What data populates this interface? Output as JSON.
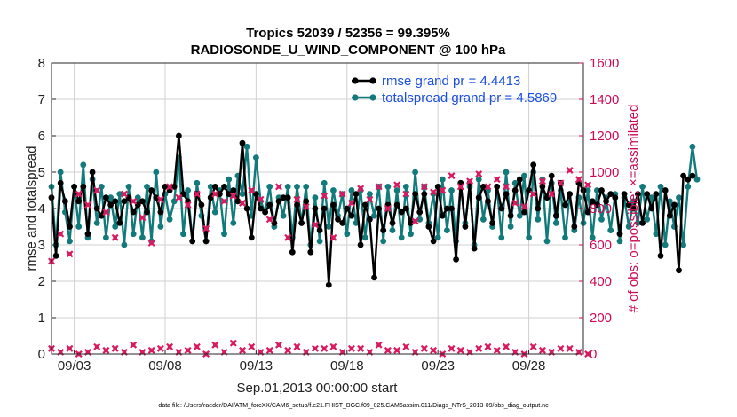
{
  "chart_data": {
    "type": "line",
    "title": "Tropics 52039 / 52356 = 99.395%",
    "subtitle": "RADIOSONDE_U_WIND_COMPONENT @ 100 hPa",
    "xlabel": "Sep.01,2013 00:00:00 start",
    "ylabel_left": "rmse and totalspread",
    "ylabel_right": "# of obs: o=possible; ×=assimilated",
    "xlim": [
      1.75,
      31.0
    ],
    "ylim_left": [
      0,
      8
    ],
    "ylim_right": [
      0,
      1600
    ],
    "x_ticks": [
      3,
      8,
      13,
      18,
      23,
      28
    ],
    "x_tick_labels": [
      "09/03",
      "09/08",
      "09/13",
      "09/18",
      "09/23",
      "09/28"
    ],
    "y_ticks_left": [
      0,
      1,
      2,
      3,
      4,
      5,
      6,
      7,
      8
    ],
    "y_tick_labels_left": [
      "0",
      "1",
      "2",
      "3",
      "4",
      "5",
      "6",
      "7",
      "8"
    ],
    "y_ticks_right": [
      0,
      200,
      400,
      600,
      800,
      1000,
      1200,
      1400,
      1600
    ],
    "y_tick_labels_right": [
      "0",
      "200",
      "400",
      "600",
      "800",
      "1000",
      "1200",
      "1400",
      "1600"
    ],
    "grid": true,
    "legend_location": "top-right",
    "colors": {
      "rmse": "#000000",
      "totalspread": "#127a7a",
      "obs": "#d81b60",
      "right_axis": "#cc0a55",
      "legend_text": "#1a4fe0",
      "grid": "#d0d0d0"
    },
    "series": [
      {
        "name": "rmse grand pr = 4.4413",
        "axis": "left",
        "x0": 1.75,
        "dx": 0.25,
        "values": [
          4.3,
          2.7,
          4.7,
          4.2,
          3.5,
          4.6,
          4.2,
          4.6,
          3.3,
          5.0,
          4.0,
          3.8,
          4.3,
          4.1,
          4.2,
          3.6,
          4.2,
          4.3,
          3.9,
          4.1,
          4.2,
          3.9,
          4.5,
          4.3,
          3.9,
          4.6,
          4.5,
          4.6,
          6.0,
          4.4,
          4.2,
          3.1,
          4.4,
          4.1,
          3.1,
          4.3,
          4.6,
          4.4,
          4.6,
          4.4,
          4.5,
          4.2,
          5.8,
          4.0,
          3.2,
          4.4,
          4.0,
          3.9,
          4.1,
          3.6,
          4.2,
          4.3,
          4.3,
          2.8,
          4.1,
          3.6,
          4.2,
          2.8,
          4.0,
          3.4,
          4.0,
          1.9,
          4.1,
          3.7,
          3.6,
          4.0,
          3.8,
          4.4,
          3.0,
          4.1,
          3.7,
          2.1,
          4.0,
          3.4,
          4.1,
          3.6,
          4.1,
          3.9,
          4.0,
          3.6,
          4.4,
          3.9,
          4.4,
          3.5,
          3.1,
          4.6,
          3.8,
          4.0,
          4.0,
          2.6,
          4.7,
          3.5,
          4.7,
          2.9,
          4.3,
          4.6,
          4.2,
          3.6,
          4.6,
          4.0,
          4.4,
          3.8,
          4.5,
          4.8,
          3.9,
          4.5,
          5.2,
          4.0,
          4.6,
          4.3,
          4.9,
          3.8,
          4.7,
          4.1,
          4.4,
          3.5,
          4.7,
          4.5,
          3.9,
          4.2,
          4.1,
          4.5,
          4.2,
          4.4,
          4.3,
          3.3,
          4.4,
          4.1,
          4.0,
          4.4,
          3.6,
          4.4,
          4.0,
          4.4,
          2.7,
          4.5,
          3.8,
          4.1,
          2.3,
          4.9,
          4.8,
          4.9
        ]
      },
      {
        "name": "totalspread grand pr = 4.5869",
        "axis": "left",
        "x0": 1.75,
        "dx": 0.25,
        "values": [
          4.6,
          3.0,
          5.0,
          3.9,
          3.1,
          4.6,
          3.5,
          5.2,
          3.2,
          4.8,
          3.6,
          4.6,
          3.2,
          4.3,
          3.5,
          4.4,
          3.0,
          4.6,
          3.3,
          4.3,
          3.2,
          4.6,
          3.1,
          5.0,
          3.5,
          4.4,
          3.7,
          4.2,
          5.4,
          3.3,
          4.5,
          3.1,
          4.7,
          3.8,
          3.1,
          4.6,
          3.9,
          4.5,
          3.3,
          4.8,
          3.6,
          4.9,
          4.4,
          5.7,
          3.8,
          5.4,
          4.2,
          3.9,
          4.6,
          3.5,
          4.3,
          3.8,
          4.6,
          3.2,
          4.6,
          3.6,
          4.6,
          3.0,
          4.3,
          3.1,
          4.7,
          3.5,
          4.5,
          3.8,
          4.4,
          3.3,
          4.5,
          3.6,
          4.5,
          3.2,
          4.4,
          3.8,
          4.6,
          3.1,
          4.6,
          3.4,
          4.5,
          3.2,
          4.6,
          3.3,
          5.0,
          3.7,
          4.6,
          3.6,
          4.4,
          3.2,
          4.8,
          3.4,
          4.5,
          3.1,
          4.7,
          3.6,
          4.6,
          3.0,
          4.8,
          3.7,
          4.5,
          3.5,
          4.6,
          3.2,
          5.0,
          3.5,
          4.7,
          3.8,
          4.9,
          3.2,
          5.0,
          3.7,
          4.8,
          3.1,
          4.7,
          3.6,
          4.5,
          3.2,
          4.4,
          3.4,
          4.3,
          3.6,
          4.5,
          3.2,
          4.5,
          3.7,
          4.3,
          3.4,
          4.4,
          3.1,
          4.3,
          3.5,
          4.2,
          3.6,
          4.6,
          3.7,
          4.3,
          3.3,
          4.6,
          3.0,
          4.2,
          3.5,
          4.3,
          3.0,
          4.6,
          5.7,
          4.8
        ]
      },
      {
        "name": "obs assimilated",
        "axis": "right",
        "marker": "x",
        "x0": 1.75,
        "dx": 0.5,
        "values": [
          510,
          660,
          550,
          880,
          820,
          900,
          780,
          640,
          880,
          840,
          750,
          610,
          850,
          920,
          860,
          820,
          880,
          690,
          880,
          840,
          870,
          830,
          900,
          850,
          740,
          920,
          640,
          850,
          810,
          710,
          870,
          640,
          880,
          830,
          910,
          850,
          920,
          800,
          930,
          880,
          730,
          920,
          890,
          900,
          980,
          920,
          950,
          990,
          920,
          960,
          920,
          830,
          810,
          880,
          950,
          880,
          940,
          1010,
          960,
          930
        ]
      },
      {
        "name": "obs possible",
        "axis": "right",
        "marker": "o",
        "x0": 1.75,
        "dx": 0.5,
        "values": [
          30,
          10,
          30,
          0,
          10,
          40,
          20,
          30,
          10,
          50,
          10,
          20,
          30,
          40,
          10,
          20,
          40,
          0,
          50,
          10,
          60,
          20,
          40,
          10,
          20,
          50,
          20,
          40,
          10,
          30,
          30,
          40,
          10,
          30,
          30,
          10,
          50,
          20,
          20,
          40,
          10,
          30,
          20,
          0,
          30,
          20,
          10,
          30,
          40,
          20,
          40,
          10,
          0,
          40,
          20,
          10,
          30,
          30,
          10,
          0
        ]
      }
    ],
    "footnote": "data file: /Users/raeder/DAI/ATM_forcXX/CAM6_setup/f.e21.FHIST_BGC.f09_025.CAM6assim.011/Diags_NTrS_2013-09/obs_diag_output.nc"
  }
}
